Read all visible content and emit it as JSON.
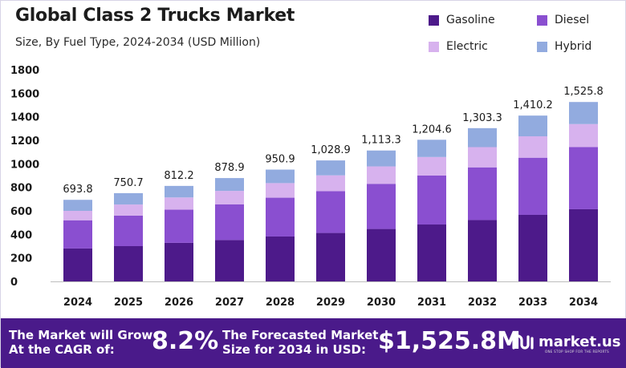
{
  "header": {
    "title": "Global Class 2 Trucks Market",
    "subtitle": "Size, By Fuel Type, 2024-2034 (USD Million)"
  },
  "colors": {
    "gasoline": "#4d1a8a",
    "diesel": "#8a4fd0",
    "electric": "#d7b2ee",
    "hybrid": "#92abdf",
    "banner": "#4a1a8a"
  },
  "chart_data": {
    "type": "bar",
    "stacked": true,
    "categories": [
      "2024",
      "2025",
      "2026",
      "2027",
      "2028",
      "2029",
      "2030",
      "2031",
      "2032",
      "2033",
      "2034"
    ],
    "series": [
      {
        "name": "Gasoline",
        "values": [
          280,
          300,
          328,
          352,
          382,
          412,
          446,
          484,
          522,
          566,
          614
        ]
      },
      {
        "name": "Diesel",
        "values": [
          240,
          260,
          282,
          304,
          330,
          356,
          384,
          416,
          448,
          486,
          528
        ]
      },
      {
        "name": "Electric",
        "values": [
          80,
          94,
          104,
          114,
          124,
          134,
          148,
          158,
          172,
          182,
          196
        ]
      },
      {
        "name": "Hybrid",
        "values": [
          93.8,
          96.7,
          98.2,
          108.9,
          114.9,
          126.9,
          135.3,
          146.6,
          161.3,
          176.2,
          187.8
        ]
      }
    ],
    "totals": [
      "693.8",
      "750.7",
      "812.2",
      "878.9",
      "950.9",
      "1,028.9",
      "1,113.3",
      "1,204.6",
      "1,303.3",
      "1,410.2",
      "1,525.8"
    ],
    "yticks": [
      "0",
      "200",
      "400",
      "600",
      "800",
      "1000",
      "1200",
      "1400",
      "1600",
      "1800"
    ],
    "ylim": [
      0,
      1800
    ],
    "legend_position": "top-right",
    "grid": false
  },
  "legend": [
    {
      "label": "Gasoline",
      "color": "#4d1a8a"
    },
    {
      "label": "Diesel",
      "color": "#8a4fd0"
    },
    {
      "label": "Electric",
      "color": "#d7b2ee"
    },
    {
      "label": "Hybrid",
      "color": "#92abdf"
    }
  ],
  "banner": {
    "cagr_text_line1": "The Market will Grow",
    "cagr_text_line2": "At the CAGR of:",
    "cagr_value": "8.2%",
    "forecast_text_line1": "The Forecasted Market",
    "forecast_text_line2": "Size for 2034 in USD:",
    "forecast_value": "$1,525.8M",
    "brand": "market.us",
    "brand_tagline": "ONE STOP SHOP FOR THE REPORTS"
  }
}
